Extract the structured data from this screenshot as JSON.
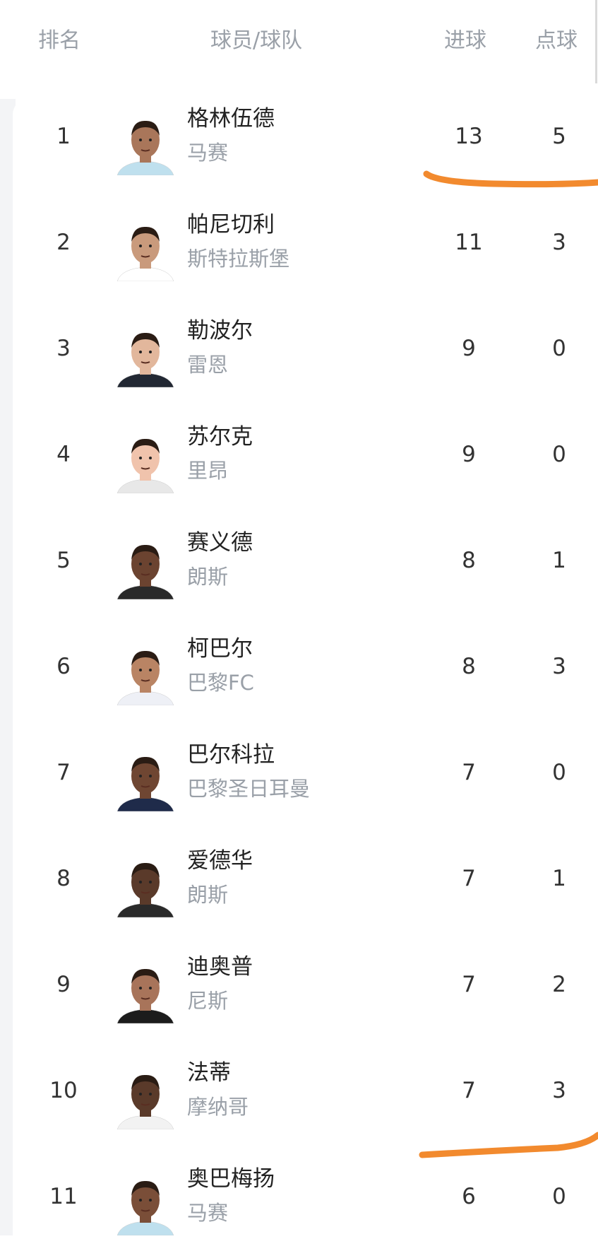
{
  "header": {
    "rank": "排名",
    "player_team": "球员/球队",
    "goals": "进球",
    "penalties": "点球"
  },
  "annotation_color": "#f28a2e",
  "rows": [
    {
      "rank": "1",
      "name": "格林伍德",
      "team": "马赛",
      "goals": "13",
      "penalties": "5",
      "skin": "#a9765a",
      "shirt": "#bfe0ee"
    },
    {
      "rank": "2",
      "name": "帕尼切利",
      "team": "斯特拉斯堡",
      "goals": "11",
      "penalties": "3",
      "skin": "#c99a7c",
      "shirt": "#ffffff"
    },
    {
      "rank": "3",
      "name": "勒波尔",
      "team": "雷恩",
      "goals": "9",
      "penalties": "0",
      "skin": "#e2b79c",
      "shirt": "#222833"
    },
    {
      "rank": "4",
      "name": "苏尔克",
      "team": "里昂",
      "goals": "9",
      "penalties": "0",
      "skin": "#f0c3ac",
      "shirt": "#e8e8e8"
    },
    {
      "rank": "5",
      "name": "赛义德",
      "team": "朗斯",
      "goals": "8",
      "penalties": "1",
      "skin": "#6b4330",
      "shirt": "#2a2a2a"
    },
    {
      "rank": "6",
      "name": "柯巴尔",
      "team": "巴黎FC",
      "goals": "8",
      "penalties": "3",
      "skin": "#b98464",
      "shirt": "#eef0f6"
    },
    {
      "rank": "7",
      "name": "巴尔科拉",
      "team": "巴黎圣日耳曼",
      "goals": "7",
      "penalties": "0",
      "skin": "#6f4632",
      "shirt": "#1f2b4a"
    },
    {
      "rank": "8",
      "name": "爱德华",
      "team": "朗斯",
      "goals": "7",
      "penalties": "1",
      "skin": "#5a3a2a",
      "shirt": "#2a2a2a"
    },
    {
      "rank": "9",
      "name": "迪奥普",
      "team": "尼斯",
      "goals": "7",
      "penalties": "2",
      "skin": "#a8745a",
      "shirt": "#1c1c1c"
    },
    {
      "rank": "10",
      "name": "法蒂",
      "team": "摩纳哥",
      "goals": "7",
      "penalties": "3",
      "skin": "#5a3a2a",
      "shirt": "#f2f2f2"
    },
    {
      "rank": "11",
      "name": "奥巴梅扬",
      "team": "马赛",
      "goals": "6",
      "penalties": "0",
      "skin": "#7a4e38",
      "shirt": "#bfe0ee"
    }
  ]
}
